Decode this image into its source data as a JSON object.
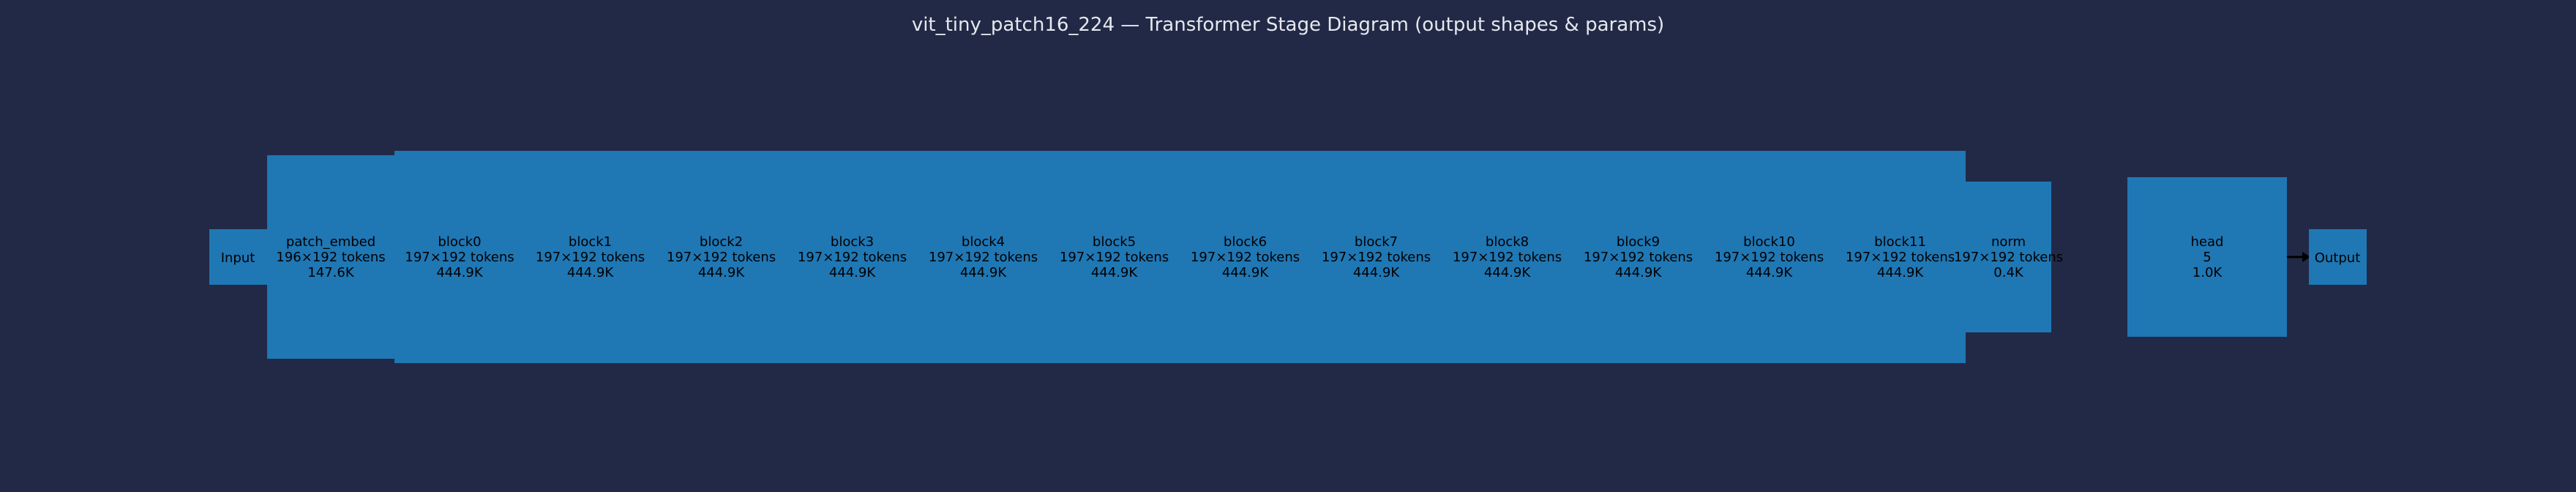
{
  "title": "vit_tiny_patch16_224 — Transformer Stage Diagram (output shapes & params)",
  "colors": {
    "background": "#212946",
    "stage": "#1f77b4",
    "text": "#000000",
    "title": "#e6e8ee",
    "arrow": "#000000"
  },
  "input": {
    "label": "Input"
  },
  "output": {
    "label": "Output"
  },
  "stages": [
    {
      "name": "patch_embed",
      "shape": "196×192 tokens",
      "params": "147.6K"
    },
    {
      "name": "block0",
      "shape": "197×192 tokens",
      "params": "444.9K"
    },
    {
      "name": "block1",
      "shape": "197×192 tokens",
      "params": "444.9K"
    },
    {
      "name": "block2",
      "shape": "197×192 tokens",
      "params": "444.9K"
    },
    {
      "name": "block3",
      "shape": "197×192 tokens",
      "params": "444.9K"
    },
    {
      "name": "block4",
      "shape": "197×192 tokens",
      "params": "444.9K"
    },
    {
      "name": "block5",
      "shape": "197×192 tokens",
      "params": "444.9K"
    },
    {
      "name": "block6",
      "shape": "197×192 tokens",
      "params": "444.9K"
    },
    {
      "name": "block7",
      "shape": "197×192 tokens",
      "params": "444.9K"
    },
    {
      "name": "block8",
      "shape": "197×192 tokens",
      "params": "444.9K"
    },
    {
      "name": "block9",
      "shape": "197×192 tokens",
      "params": "444.9K"
    },
    {
      "name": "block10",
      "shape": "197×192 tokens",
      "params": "444.9K"
    },
    {
      "name": "block11",
      "shape": "197×192 tokens",
      "params": "444.9K"
    },
    {
      "name": "norm",
      "shape": "197×192 tokens",
      "params": "0.4K"
    },
    {
      "name": "head",
      "shape": "5",
      "params": "1.0K"
    }
  ]
}
